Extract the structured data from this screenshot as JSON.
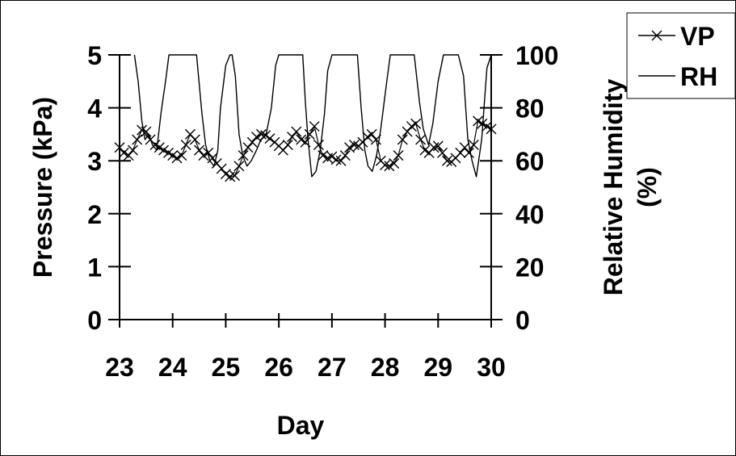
{
  "chart_data": {
    "type": "line",
    "xlabel": "Day",
    "ylabel_left": "Pressure (kPa)",
    "ylabel_right_lines": [
      "Relative Humidity",
      "(%)"
    ],
    "xlim": [
      23,
      30
    ],
    "ylim_left": [
      0,
      5
    ],
    "ylim_right": [
      0,
      100
    ],
    "x_ticks": [
      23,
      24,
      25,
      26,
      27,
      28,
      29,
      30
    ],
    "y_ticks_left": [
      0,
      1,
      2,
      3,
      4,
      5
    ],
    "y_ticks_right": [
      0,
      20,
      40,
      60,
      80,
      100
    ],
    "legend_position": "top-right",
    "series": [
      {
        "name": "VP",
        "axis": "left",
        "marker": "x",
        "x": [
          23.0,
          23.08,
          23.17,
          23.25,
          23.33,
          23.42,
          23.5,
          23.58,
          23.67,
          23.75,
          23.83,
          23.92,
          24.0,
          24.08,
          24.17,
          24.25,
          24.33,
          24.42,
          24.5,
          24.58,
          24.67,
          24.75,
          24.83,
          24.92,
          25.0,
          25.08,
          25.17,
          25.25,
          25.33,
          25.42,
          25.5,
          25.58,
          25.67,
          25.75,
          25.83,
          25.92,
          26.0,
          26.08,
          26.17,
          26.25,
          26.33,
          26.42,
          26.5,
          26.58,
          26.67,
          26.75,
          26.83,
          26.92,
          27.0,
          27.08,
          27.17,
          27.25,
          27.33,
          27.42,
          27.5,
          27.58,
          27.67,
          27.75,
          27.83,
          27.92,
          28.0,
          28.08,
          28.17,
          28.25,
          28.33,
          28.42,
          28.5,
          28.58,
          28.67,
          28.75,
          28.83,
          28.92,
          29.0,
          29.08,
          29.17,
          29.25,
          29.33,
          29.42,
          29.5,
          29.58,
          29.67,
          29.75,
          29.83,
          29.92,
          30.0
        ],
        "values": [
          3.25,
          3.15,
          3.1,
          3.2,
          3.4,
          3.58,
          3.55,
          3.4,
          3.3,
          3.25,
          3.2,
          3.15,
          3.1,
          3.05,
          3.1,
          3.3,
          3.5,
          3.4,
          3.2,
          3.1,
          3.15,
          3.05,
          2.95,
          2.85,
          2.75,
          2.7,
          2.72,
          2.9,
          3.1,
          3.25,
          3.35,
          3.45,
          3.5,
          3.48,
          3.42,
          3.35,
          3.28,
          3.2,
          3.3,
          3.45,
          3.55,
          3.4,
          3.35,
          3.5,
          3.65,
          3.3,
          3.1,
          3.05,
          3.08,
          3.02,
          3.0,
          3.1,
          3.25,
          3.3,
          3.28,
          3.35,
          3.45,
          3.5,
          3.4,
          3.0,
          2.92,
          2.9,
          2.95,
          3.1,
          3.4,
          3.55,
          3.65,
          3.7,
          3.4,
          3.2,
          3.15,
          3.25,
          3.28,
          3.15,
          3.0,
          2.98,
          3.05,
          3.15,
          3.25,
          3.15,
          3.3,
          3.75,
          3.7,
          3.65,
          3.6
        ]
      },
      {
        "name": "RH",
        "axis": "right",
        "marker": "none",
        "x": [
          23.28,
          23.35,
          23.42,
          23.48,
          23.55,
          23.62,
          23.7,
          23.78,
          23.88,
          23.93,
          24.05,
          24.18,
          24.3,
          24.45,
          24.55,
          24.62,
          24.7,
          24.78,
          24.85,
          24.9,
          25.0,
          25.08,
          25.12,
          25.18,
          25.25,
          25.32,
          25.4,
          25.48,
          25.58,
          25.66,
          25.76,
          25.86,
          25.94,
          26.0,
          26.1,
          26.22,
          26.32,
          26.45,
          26.5,
          26.55,
          26.62,
          26.7,
          26.78,
          26.86,
          26.92,
          27.0,
          27.1,
          27.22,
          27.35,
          27.48,
          27.55,
          27.62,
          27.68,
          27.76,
          27.84,
          27.92,
          28.02,
          28.1,
          28.2,
          28.32,
          28.44,
          28.55,
          28.65,
          28.72,
          28.82,
          28.9,
          29.0,
          29.1,
          29.18,
          29.28,
          29.38,
          29.48,
          29.56,
          29.64,
          29.72,
          29.82,
          29.92,
          30.0
        ],
        "values": [
          100,
          90,
          75,
          68,
          70,
          66,
          64,
          78,
          92,
          100,
          100,
          100,
          100,
          100,
          78,
          66,
          60,
          58,
          64,
          80,
          96,
          100,
          100,
          92,
          70,
          62,
          58,
          60,
          64,
          68,
          70,
          80,
          96,
          100,
          100,
          100,
          100,
          100,
          82,
          68,
          54,
          56,
          64,
          78,
          94,
          100,
          100,
          100,
          100,
          100,
          80,
          64,
          58,
          56,
          62,
          72,
          88,
          100,
          100,
          100,
          100,
          100,
          82,
          72,
          66,
          74,
          90,
          100,
          100,
          100,
          100,
          92,
          68,
          60,
          54,
          68,
          95,
          100
        ]
      }
    ]
  }
}
